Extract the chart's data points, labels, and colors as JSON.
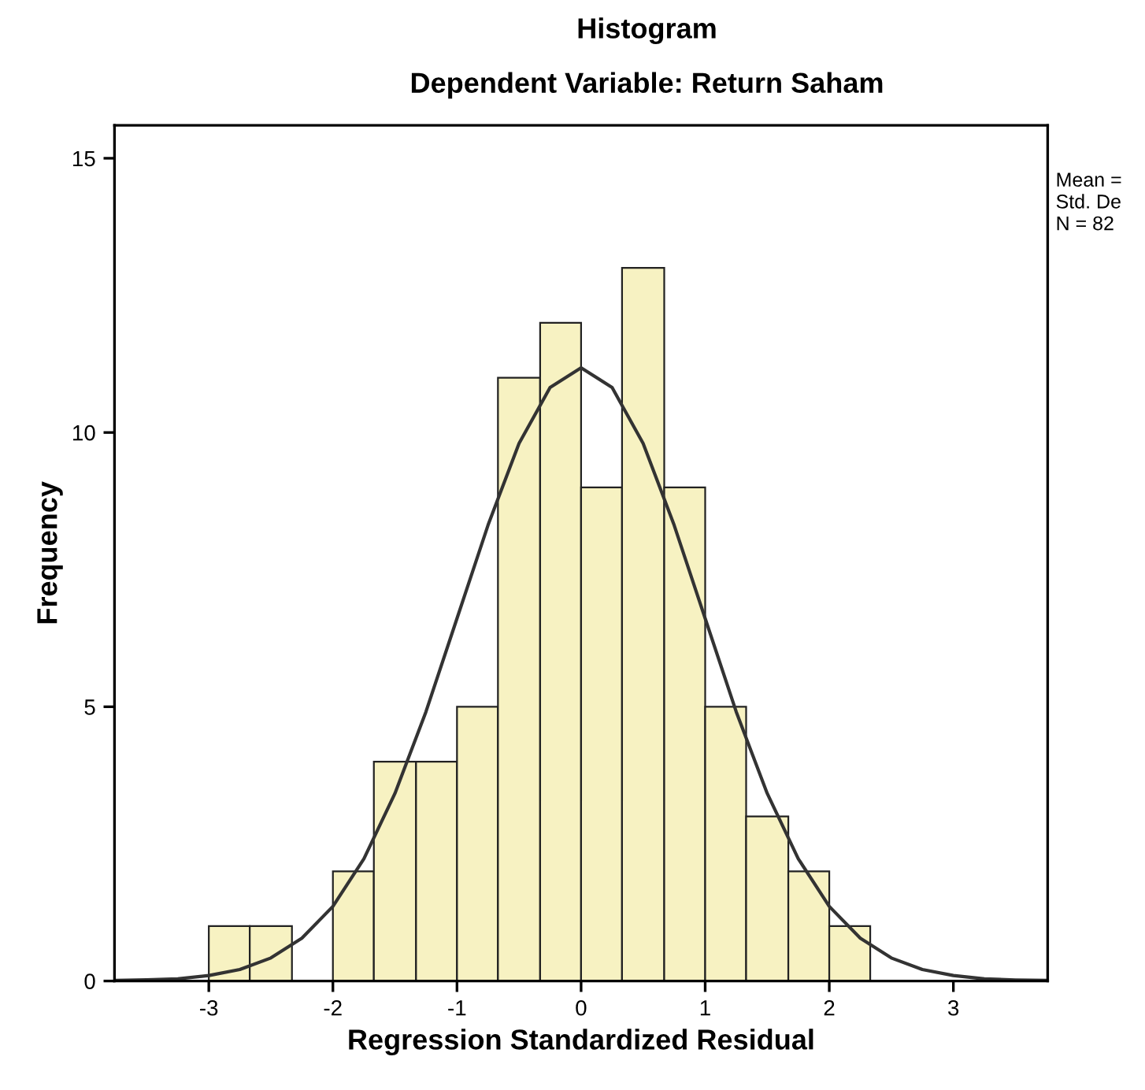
{
  "chart_data": {
    "type": "histogram",
    "title": "Histogram",
    "subtitle": "Dependent Variable: Return Saham",
    "xlabel": "Regression Standardized Residual",
    "ylabel": "Frequency",
    "bins": [
      -3,
      -2.67,
      -2.33,
      -2,
      -1.67,
      -1.33,
      -1,
      -0.67,
      -0.33,
      0,
      0.33,
      0.67,
      1,
      1.33,
      1.67,
      2,
      2.33
    ],
    "values": [
      1,
      1,
      0,
      2,
      4,
      4,
      5,
      11,
      12,
      9,
      13,
      9,
      5,
      3,
      2,
      1
    ],
    "color": "#f7f2c2",
    "series": [
      {
        "type": "line",
        "color": "#333333",
        "x": [
          -3.75,
          -3.5,
          -3.25,
          -3,
          -2.75,
          -2.5,
          -2.25,
          -2,
          -1.75,
          -1.5,
          -1.25,
          -1,
          -0.75,
          -0.5,
          -0.25,
          0,
          0.25,
          0.5,
          0.75,
          1,
          1.25,
          1.5,
          1.75,
          2,
          2.25,
          2.5,
          2.75,
          3,
          3.25,
          3.5,
          3.75
        ],
        "values": [
          0.01,
          0.02,
          0.04,
          0.1,
          0.21,
          0.42,
          0.78,
          1.36,
          2.23,
          3.42,
          4.91,
          6.61,
          8.31,
          9.8,
          10.82,
          11.18,
          10.82,
          9.8,
          8.31,
          6.61,
          4.91,
          3.42,
          2.23,
          1.36,
          0.78,
          0.42,
          0.21,
          0.1,
          0.04,
          0.02,
          0.01
        ]
      }
    ],
    "xlim": [
      -3.76,
      3.76
    ],
    "ylim": [
      0,
      15.6
    ],
    "xticks": [
      -3,
      -2,
      -1,
      0,
      1,
      2,
      3
    ],
    "yticks": [
      0,
      5,
      10,
      15
    ],
    "grid": false,
    "annotations": [
      "Mean =",
      "Std. De",
      "N = 82"
    ]
  }
}
